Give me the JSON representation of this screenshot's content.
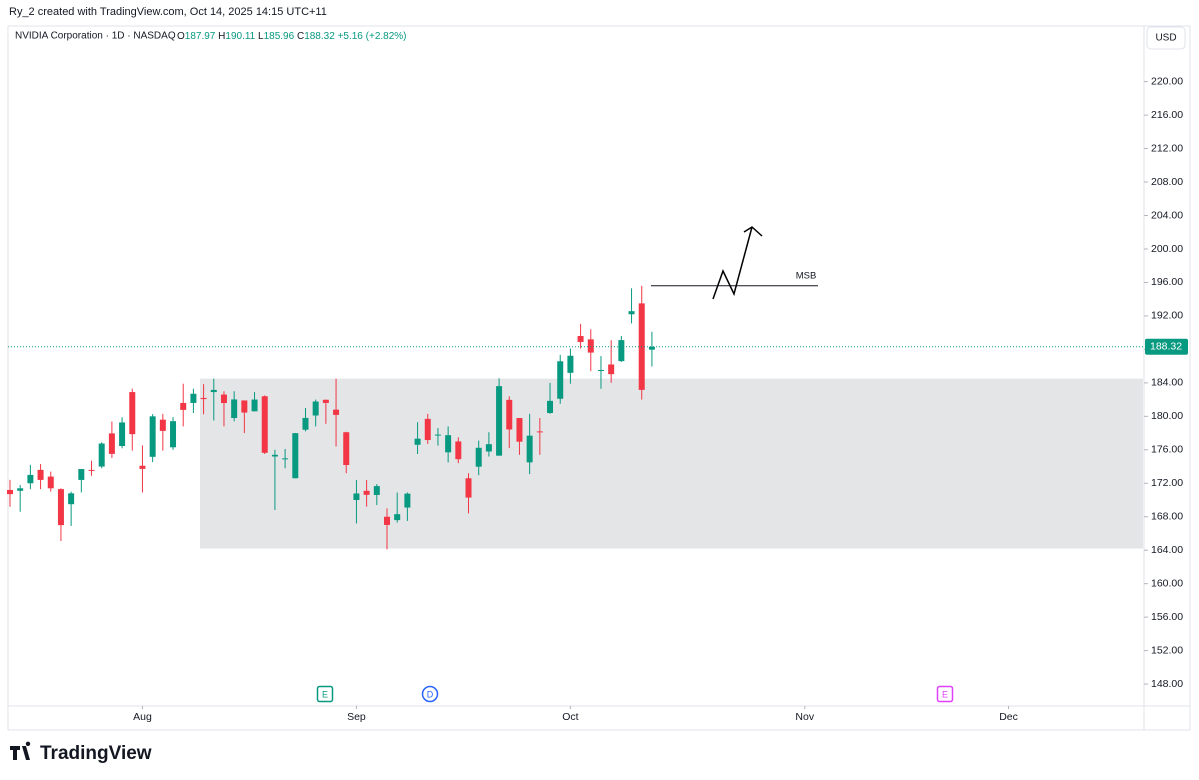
{
  "header": {
    "credit": "Ry_2 created with TradingView.com, Oct 14, 2025 14:15 UTC+11",
    "symbol": "NVIDIA Corporation · 1D · NASDAQ",
    "quote": [
      {
        "label": "O",
        "value": "187.97"
      },
      {
        "label": "H",
        "value": "190.11"
      },
      {
        "label": "L",
        "value": "185.96"
      },
      {
        "label": "C",
        "value": "188.32"
      }
    ],
    "change": "+5.16 (+2.82%)",
    "currency": "USD"
  },
  "footer": {
    "brand": "TradingView"
  },
  "chart_data": {
    "type": "candlestick",
    "up_color": "#089981",
    "down_color": "#f23645",
    "open": [
      171.2,
      171.1,
      172.0,
      173.6,
      172.8,
      171.3,
      169.5,
      172.4,
      173.6,
      174.0,
      177.96,
      176.45,
      182.9,
      174.09,
      175.16,
      179.6,
      176.3,
      181.6,
      181.6,
      182.2,
      182.9,
      182.6,
      179.8,
      181.9,
      180.6,
      182.4,
      175.2,
      174.9,
      172.6,
      178.4,
      180.1,
      181.98,
      180.8,
      178.1,
      170.0,
      171.1,
      170.6,
      168.0,
      167.6,
      169.1,
      176.6,
      179.7,
      177.8,
      175.7,
      177.0,
      172.6,
      173.98,
      175.8,
      175.3,
      181.97,
      179.8,
      174.5,
      178.2,
      180.4,
      182.1,
      185.2,
      189.6,
      189.2,
      185.5,
      186.2,
      186.6,
      192.2,
      193.5,
      187.97
    ],
    "high": [
      172.4,
      171.8,
      174.2,
      174.3,
      173.4,
      171.4,
      171.0,
      173.4,
      174.7,
      176.9,
      179.38,
      179.89,
      183.3,
      176.54,
      180.26,
      180.3,
      179.9,
      183.9,
      183.3,
      183.85,
      184.5,
      183.0,
      183.0,
      181.9,
      182.9,
      182.5,
      176.0,
      176.1,
      178.0,
      181.0,
      182.0,
      182.0,
      184.5,
      178.15,
      172.4,
      172.4,
      171.9,
      169.0,
      170.9,
      170.9,
      179.3,
      180.3,
      178.6,
      178.8,
      177.5,
      173.2,
      177.1,
      178.1,
      184.55,
      182.4,
      179.8,
      180.3,
      179.8,
      184.0,
      187.35,
      188.1,
      191.05,
      190.4,
      187.2,
      189.1,
      189.6,
      195.3,
      195.6,
      190.11
    ],
    "low": [
      169.2,
      168.6,
      171.3,
      171.3,
      171.0,
      165.1,
      166.9,
      170.9,
      172.9,
      173.8,
      175.03,
      176.18,
      175.9,
      170.89,
      174.52,
      175.9,
      176.0,
      178.8,
      180.4,
      180.25,
      179.5,
      178.8,
      179.4,
      178.0,
      180.6,
      175.5,
      168.8,
      173.8,
      172.6,
      178.2,
      178.8,
      179.1,
      176.4,
      173.2,
      167.2,
      169.2,
      169.4,
      164.1,
      167.3,
      167.5,
      175.5,
      176.7,
      176.5,
      174.5,
      174.4,
      168.4,
      172.96,
      175.2,
      175.3,
      176.2,
      175.4,
      173.1,
      175.4,
      180.3,
      181.5,
      183.9,
      188.1,
      185.4,
      183.3,
      184.0,
      186.5,
      191.1,
      182.0,
      185.96
    ],
    "close": [
      170.7,
      171.4,
      173.0,
      172.4,
      171.4,
      167.0,
      170.8,
      173.7,
      173.5,
      176.75,
      175.51,
      179.27,
      177.87,
      173.72,
      180.0,
      178.26,
      179.42,
      180.77,
      182.7,
      182.06,
      183.16,
      181.59,
      182.02,
      180.45,
      182.01,
      175.64,
      175.4,
      174.98,
      177.99,
      179.81,
      181.77,
      181.6,
      180.17,
      174.18,
      170.78,
      170.62,
      171.66,
      167.02,
      168.31,
      170.76,
      177.33,
      177.17,
      177.82,
      177.75,
      174.88,
      170.29,
      176.24,
      176.67,
      183.61,
      178.43,
      176.97,
      177.69,
      178.19,
      181.85,
      186.58,
      187.24,
      188.89,
      187.62,
      185.54,
      185.04,
      189.11,
      192.57,
      183.16,
      188.32
    ],
    "xlim": [
      0,
      111
    ],
    "xticks": [
      {
        "value": 13,
        "label": "Aug"
      },
      {
        "value": 34,
        "label": "Sep"
      },
      {
        "value": 55,
        "label": "Oct"
      },
      {
        "value": 78,
        "label": "Nov"
      },
      {
        "value": 98,
        "label": "Dec"
      }
    ],
    "ylim": [
      145.5,
      224.5
    ],
    "yticks": [
      {
        "value": 148,
        "label": "148.00"
      },
      {
        "value": 152,
        "label": "152.00"
      },
      {
        "value": 156,
        "label": "156.00"
      },
      {
        "value": 160,
        "label": "160.00"
      },
      {
        "value": 164,
        "label": "164.00"
      },
      {
        "value": 168,
        "label": "168.00"
      },
      {
        "value": 172,
        "label": "172.00"
      },
      {
        "value": 176,
        "label": "176.00"
      },
      {
        "value": 180,
        "label": "180.00"
      },
      {
        "value": 184,
        "label": "184.00"
      },
      {
        "value": 188,
        "label": "188.00"
      },
      {
        "value": 192,
        "label": "192.00"
      },
      {
        "value": 196,
        "label": "196.00"
      },
      {
        "value": 200,
        "label": "200.00"
      },
      {
        "value": 204,
        "label": "204.00"
      },
      {
        "value": 208,
        "label": "208.00"
      },
      {
        "value": 212,
        "label": "212.00"
      },
      {
        "value": 216,
        "label": "216.00"
      },
      {
        "value": 220,
        "label": "220.00"
      }
    ],
    "zone": {
      "low": 164.2,
      "high": 184.5
    },
    "level": {
      "label": "MSB",
      "value": 195.6
    },
    "events": [
      {
        "label": "E"
      },
      {
        "label": "D"
      },
      {
        "label": "E"
      }
    ]
  }
}
